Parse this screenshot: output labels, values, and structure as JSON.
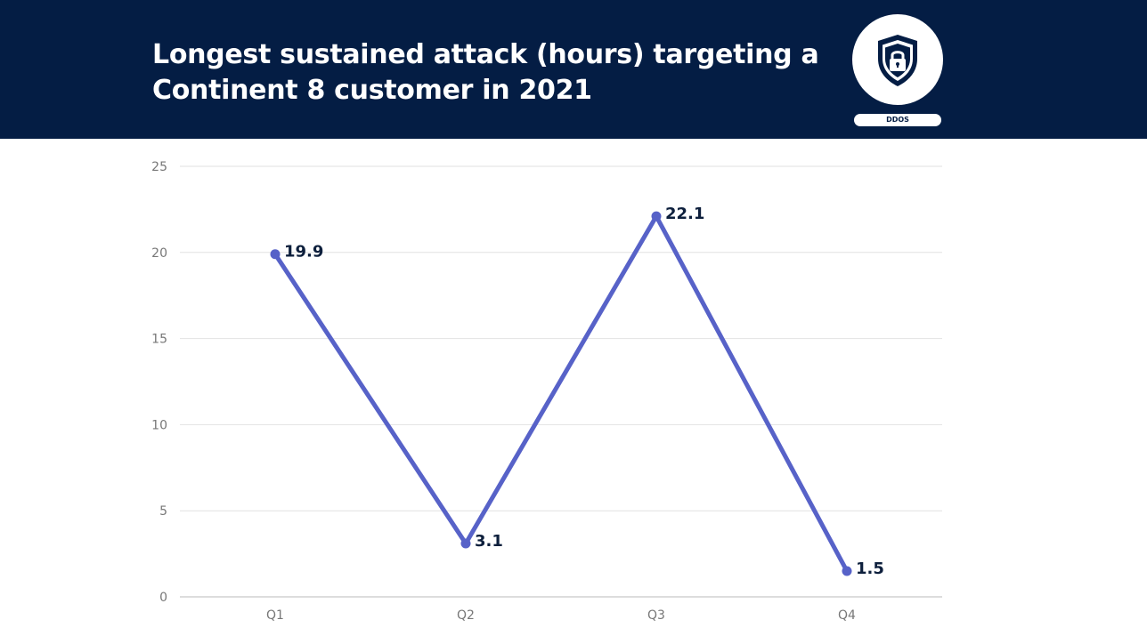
{
  "header": {
    "title_line1": "Longest sustained attack (hours) targeting a",
    "title_line2": "Continent 8 customer in 2021",
    "badge_label": "DDOS",
    "badge_icon": "shield-lock-icon",
    "background": "#041d44"
  },
  "chart_data": {
    "type": "line",
    "categories": [
      "Q1",
      "Q2",
      "Q3",
      "Q4"
    ],
    "series": [
      {
        "values": [
          19.9,
          3.1,
          22.1,
          1.5
        ],
        "color": "#5762c8"
      }
    ],
    "data_labels": [
      "19.9",
      "3.1",
      "22.1",
      "1.5"
    ],
    "yticks": [
      0,
      5,
      10,
      15,
      20,
      25
    ],
    "ylim": [
      0,
      25
    ],
    "grid": true,
    "legend": "none"
  }
}
